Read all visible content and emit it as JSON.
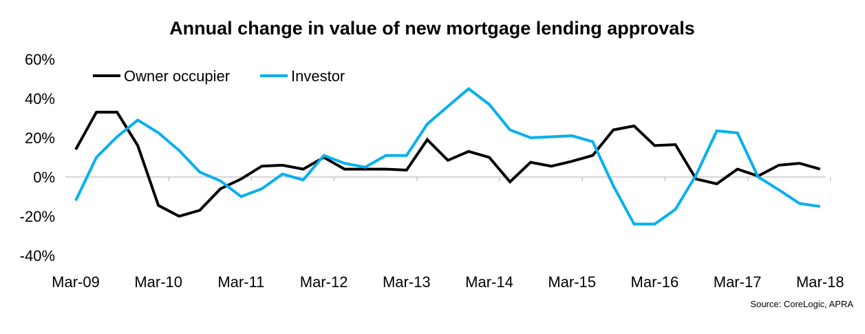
{
  "chart_data": {
    "type": "line",
    "title": "Annual change in value of new mortgage lending approvals",
    "source": "Source: CoreLogic, APRA",
    "xlabel": "",
    "ylabel": "",
    "ylim": [
      -40,
      60
    ],
    "yticks": [
      "60%",
      "40%",
      "20%",
      "0%",
      "-20%",
      "-40%"
    ],
    "ytick_values": [
      60,
      40,
      20,
      0,
      -20,
      -40
    ],
    "xtick_labels": [
      "Mar-09",
      "Mar-10",
      "Mar-11",
      "Mar-12",
      "Mar-13",
      "Mar-14",
      "Mar-15",
      "Mar-16",
      "Mar-17",
      "Mar-18"
    ],
    "x_frequency": "quarterly",
    "grid": false,
    "legend": "top-left",
    "series": [
      {
        "name": "Owner occupier",
        "color": "#000000",
        "values": [
          14,
          33,
          33,
          16,
          -14.5,
          -20,
          -17,
          -6,
          -1,
          5.5,
          6,
          4,
          10,
          4,
          4,
          4,
          3.5,
          19,
          8.5,
          13,
          10,
          -2.5,
          7.5,
          5.5,
          8,
          11,
          24,
          26,
          16,
          16.5,
          -1,
          -3.5,
          4,
          0.5,
          6,
          7,
          4
        ]
      },
      {
        "name": "Investor",
        "color": "#00b0f0",
        "values": [
          -12,
          10,
          20.5,
          29,
          22.5,
          13.5,
          2.5,
          -2,
          -10,
          -6,
          1.5,
          -1.5,
          11,
          7,
          5,
          11,
          11,
          27,
          36,
          45,
          37,
          24,
          20,
          20.5,
          21,
          18,
          -4.5,
          -24,
          -24,
          -16.5,
          1,
          23.5,
          22.5,
          0,
          -6.5,
          -13.5,
          -15
        ]
      }
    ]
  }
}
